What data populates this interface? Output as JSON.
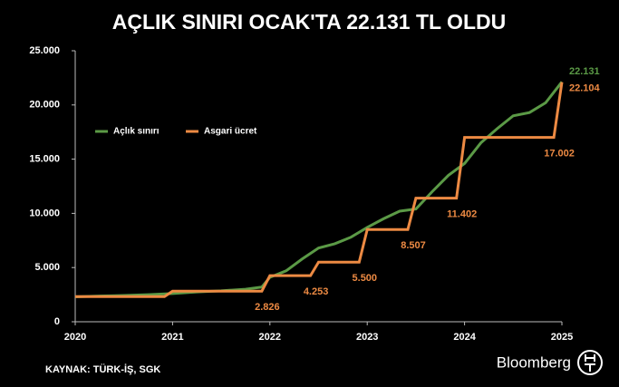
{
  "chart_data": {
    "type": "line",
    "title": "AÇLIK SINIRI OCAK'TA 22.131 TL OLDU",
    "source": "KAYNAK: TÜRK-İŞ, SGK",
    "logo": "Bloomberg",
    "xlim": [
      2020,
      2025
    ],
    "xticks": [
      2020,
      2021,
      2022,
      2023,
      2024,
      2025
    ],
    "ylim": [
      0,
      25000
    ],
    "yticks": [
      0,
      {
        "value": 5000,
        "label": "5.000"
      },
      {
        "value": 10000,
        "label": "10.000"
      },
      {
        "value": 15000,
        "label": "15.000"
      },
      {
        "value": 20000,
        "label": "20.000"
      },
      {
        "value": 25000,
        "label": "25.000"
      }
    ],
    "legend": "upper left",
    "series": [
      {
        "name": "Açlık sınırı",
        "color": "#5b9a46",
        "x": [
          2020,
          2020.25,
          2020.5,
          2020.75,
          2021,
          2021.25,
          2021.5,
          2021.75,
          2021.917,
          2022,
          2022.167,
          2022.333,
          2022.5,
          2022.667,
          2022.833,
          2023,
          2023.167,
          2023.333,
          2023.5,
          2023.667,
          2023.833,
          2024,
          2024.167,
          2024.333,
          2024.5,
          2024.667,
          2024.833,
          2025
        ],
        "values": [
          2300,
          2370,
          2420,
          2500,
          2600,
          2750,
          2850,
          3000,
          3200,
          4100,
          4700,
          5800,
          6800,
          7200,
          7800,
          8700,
          9500,
          10200,
          10400,
          12000,
          13500,
          14600,
          16500,
          17800,
          19000,
          19300,
          20200,
          22131
        ],
        "value_labels": [
          null,
          null,
          null,
          null,
          null,
          null,
          null,
          null,
          null,
          null,
          null,
          null,
          null,
          null,
          null,
          null,
          null,
          null,
          null,
          null,
          null,
          null,
          null,
          null,
          null,
          null,
          null,
          "22.131"
        ]
      },
      {
        "name": "Asgari ücret",
        "color": "#ed8a43",
        "x": [
          2020,
          2020.917,
          2021,
          2021.917,
          2022,
          2022.417,
          2022.5,
          2022.917,
          2023,
          2023.417,
          2023.5,
          2023.917,
          2024,
          2024.917,
          2025
        ],
        "values": [
          2325,
          2325,
          2826,
          2826,
          4253,
          4253,
          5500,
          5500,
          8507,
          8507,
          11402,
          11402,
          17002,
          17002,
          22104
        ],
        "value_labels": [
          null,
          null,
          null,
          "2.826",
          null,
          "4.253",
          null,
          "5.500",
          null,
          "8.507",
          null,
          "11.402",
          null,
          "17.002",
          "22.104"
        ]
      }
    ]
  }
}
